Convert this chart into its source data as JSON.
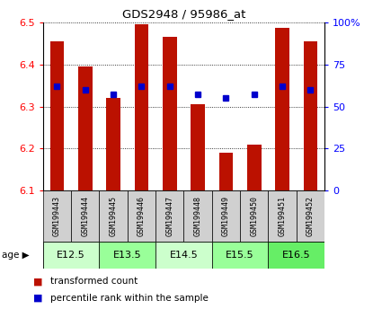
{
  "title": "GDS2948 / 95986_at",
  "samples": [
    "GSM199443",
    "GSM199444",
    "GSM199445",
    "GSM199446",
    "GSM199447",
    "GSM199448",
    "GSM199449",
    "GSM199450",
    "GSM199451",
    "GSM199452"
  ],
  "bar_tops": [
    6.455,
    6.395,
    6.32,
    6.495,
    6.465,
    6.305,
    6.19,
    6.21,
    6.487,
    6.455
  ],
  "bar_bottom": 6.1,
  "percentile_pct": [
    62,
    60,
    57,
    62,
    62,
    57,
    55,
    57,
    62,
    60
  ],
  "age_groups": [
    {
      "label": "E12.5",
      "start": 0,
      "end": 2,
      "color": "#ccffcc"
    },
    {
      "label": "E13.5",
      "start": 2,
      "end": 4,
      "color": "#99ff99"
    },
    {
      "label": "E14.5",
      "start": 4,
      "end": 6,
      "color": "#ccffcc"
    },
    {
      "label": "E15.5",
      "start": 6,
      "end": 8,
      "color": "#99ff99"
    },
    {
      "label": "E16.5",
      "start": 8,
      "end": 10,
      "color": "#66ee66"
    }
  ],
  "ylim_left": [
    6.1,
    6.5
  ],
  "ylim_right": [
    0,
    100
  ],
  "yticks_left": [
    6.1,
    6.2,
    6.3,
    6.4,
    6.5
  ],
  "yticks_right": [
    0,
    25,
    50,
    75,
    100
  ],
  "bar_color": "#bb1100",
  "dot_color": "#0000cc",
  "bar_width": 0.5,
  "legend_items": [
    "transformed count",
    "percentile rank within the sample"
  ],
  "legend_colors": [
    "#bb1100",
    "#0000cc"
  ],
  "sample_box_color": "#d0d0d0"
}
